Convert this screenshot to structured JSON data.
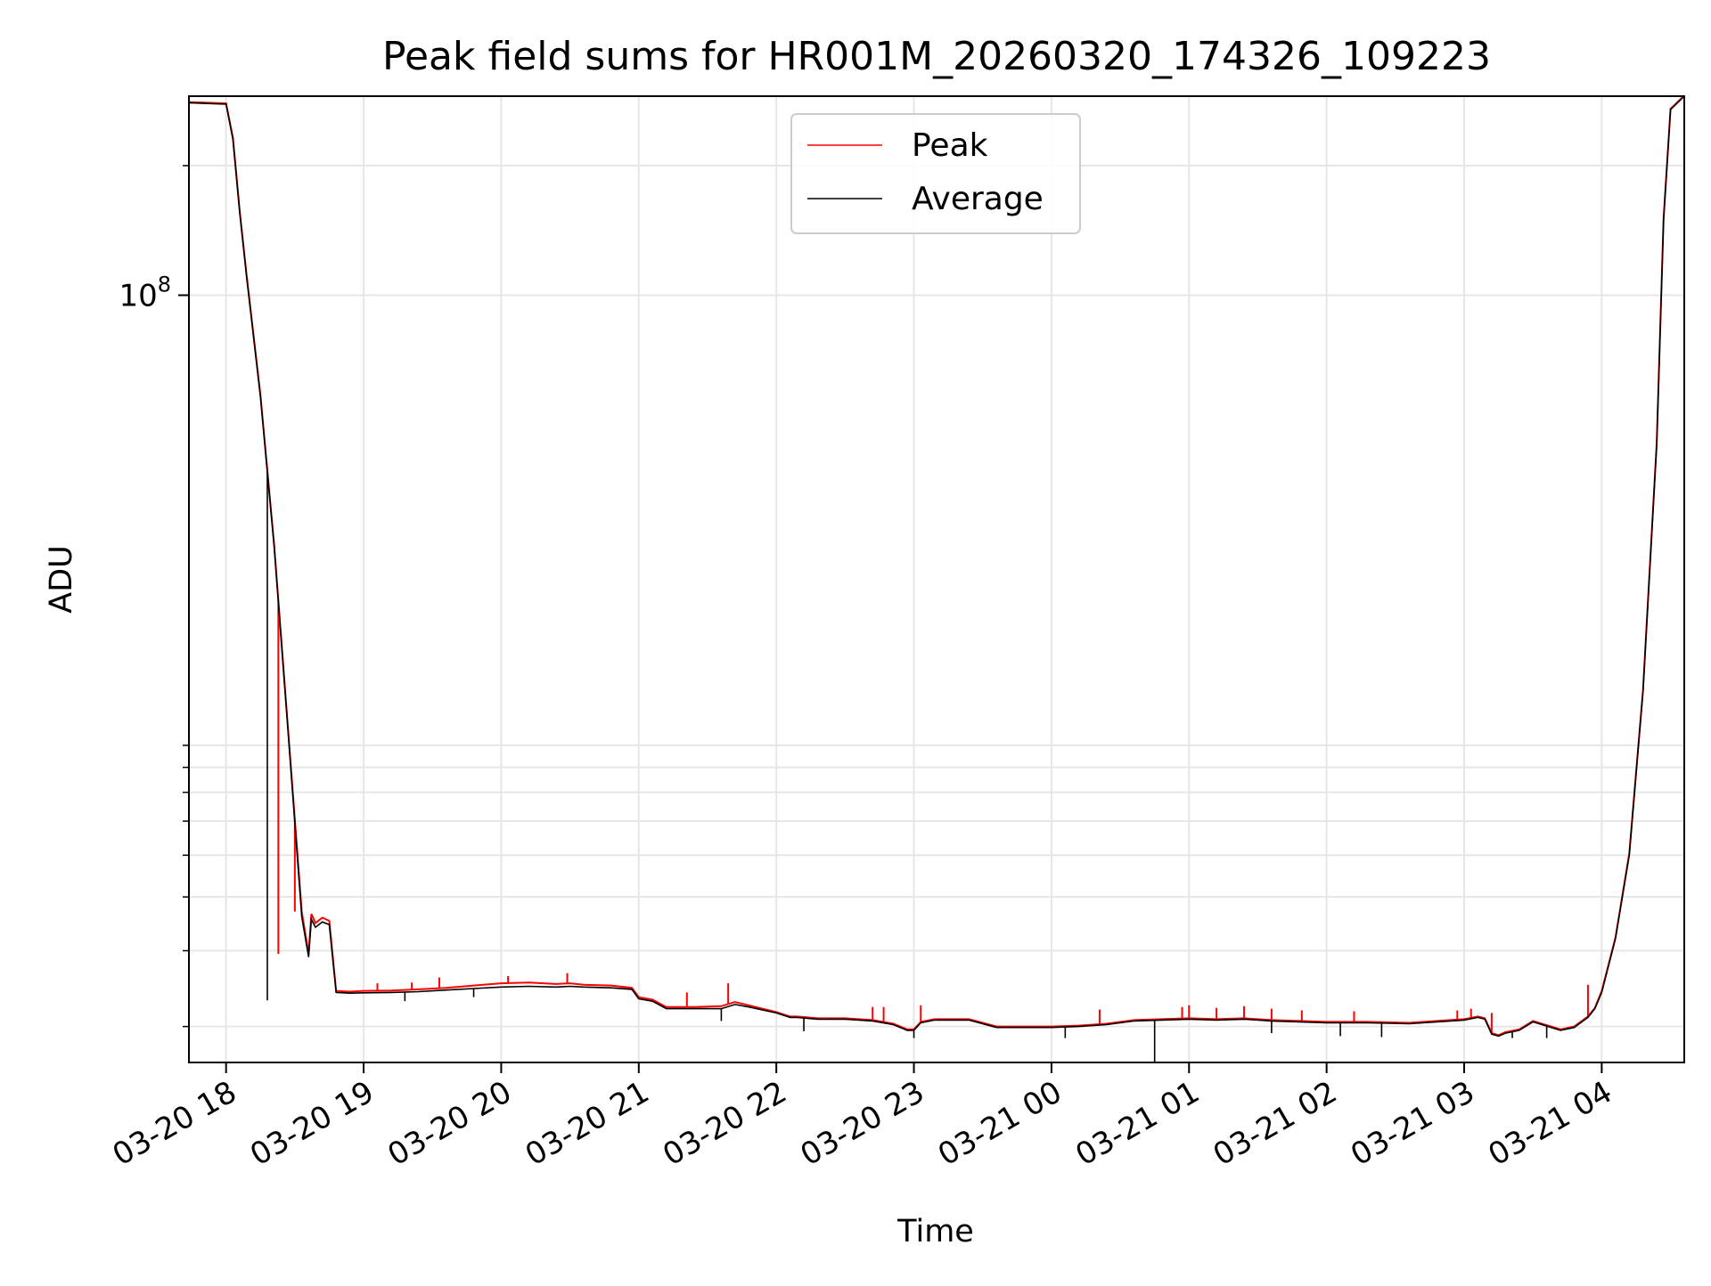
{
  "chart_data": {
    "type": "line",
    "title": "Peak field sums for HR001M_20260320_174326_109223",
    "xlabel": "Time",
    "ylabel": "ADU",
    "yscale": "log",
    "y_major_tick": {
      "value": 100000000,
      "base": "10",
      "exponent": "8"
    },
    "y_minor_ticks": [
      2000000,
      3000000,
      4000000,
      5000000,
      6000000,
      7000000,
      8000000,
      9000000,
      200000000
    ],
    "ylim": [
      1650000,
      290000000
    ],
    "xlim_hours": [
      -0.27,
      10.6
    ],
    "x_tick_labels": [
      "03-20 18",
      "03-20 19",
      "03-20 20",
      "03-20 21",
      "03-20 22",
      "03-20 23",
      "03-21 00",
      "03-21 01",
      "03-21 02",
      "03-21 03",
      "03-21 04"
    ],
    "x_tick_hours": [
      0,
      1,
      2,
      3,
      4,
      5,
      6,
      7,
      8,
      9,
      10
    ],
    "grid": true,
    "legend": {
      "location": "upper center",
      "entries": [
        {
          "name": "Peak",
          "color": "#ff0000"
        },
        {
          "name": "Average",
          "color": "#000000"
        }
      ]
    },
    "series": [
      {
        "name": "Average",
        "color": "#000000",
        "x_hours": [
          -0.27,
          0.0,
          0.05,
          0.1,
          0.15,
          0.25,
          0.35,
          0.45,
          0.55,
          0.6,
          0.62,
          0.65,
          0.7,
          0.75,
          0.8,
          0.9,
          1.0,
          1.2,
          1.4,
          1.6,
          1.8,
          2.0,
          2.2,
          2.4,
          2.5,
          2.6,
          2.8,
          2.95,
          3.0,
          3.1,
          3.2,
          3.4,
          3.6,
          3.7,
          3.8,
          4.0,
          4.1,
          4.15,
          4.3,
          4.5,
          4.7,
          4.85,
          4.95,
          5.0,
          5.05,
          5.15,
          5.4,
          5.6,
          5.8,
          6.0,
          6.2,
          6.4,
          6.6,
          6.8,
          7.0,
          7.2,
          7.4,
          7.6,
          7.8,
          8.0,
          8.3,
          8.6,
          8.8,
          9.0,
          9.1,
          9.15,
          9.2,
          9.25,
          9.3,
          9.4,
          9.5,
          9.7,
          9.8,
          9.9,
          9.95,
          10.0,
          10.1,
          10.2,
          10.3,
          10.4,
          10.45,
          10.5,
          10.6
        ],
        "values": [
          280000000,
          278000000,
          230000000,
          155000000,
          110000000,
          58000000,
          26000000,
          9800000,
          3600000,
          2900000,
          3550000,
          3400000,
          3500000,
          3450000,
          2400000,
          2390000,
          2395000,
          2400000,
          2410000,
          2430000,
          2450000,
          2470000,
          2480000,
          2470000,
          2480000,
          2470000,
          2460000,
          2440000,
          2320000,
          2290000,
          2200000,
          2200000,
          2200000,
          2250000,
          2220000,
          2150000,
          2100000,
          2100000,
          2080000,
          2080000,
          2060000,
          2020000,
          1960000,
          1960000,
          2040000,
          2070000,
          2070000,
          1990000,
          1990000,
          1990000,
          2000000,
          2020000,
          2060000,
          2070000,
          2080000,
          2070000,
          2080000,
          2060000,
          2050000,
          2040000,
          2040000,
          2030000,
          2050000,
          2070000,
          2100000,
          2080000,
          1920000,
          1900000,
          1930000,
          1960000,
          2050000,
          1960000,
          1990000,
          2100000,
          2200000,
          2400000,
          3200000,
          5000000,
          12000000,
          45000000,
          150000000,
          270000000,
          290000000
        ]
      },
      {
        "name": "Peak",
        "color": "#ff0000",
        "x_hours": [
          -0.27,
          0.0,
          0.05,
          0.1,
          0.15,
          0.25,
          0.35,
          0.45,
          0.55,
          0.6,
          0.62,
          0.65,
          0.7,
          0.75,
          0.8,
          0.9,
          1.0,
          1.2,
          1.4,
          1.6,
          1.8,
          2.0,
          2.2,
          2.4,
          2.5,
          2.6,
          2.8,
          2.95,
          3.0,
          3.1,
          3.2,
          3.4,
          3.6,
          3.7,
          3.8,
          4.0,
          4.1,
          4.15,
          4.3,
          4.5,
          4.7,
          4.85,
          4.95,
          5.0,
          5.05,
          5.15,
          5.4,
          5.6,
          5.8,
          6.0,
          6.2,
          6.4,
          6.6,
          6.8,
          7.0,
          7.2,
          7.4,
          7.6,
          7.8,
          8.0,
          8.3,
          8.6,
          8.8,
          9.0,
          9.1,
          9.15,
          9.2,
          9.25,
          9.3,
          9.4,
          9.5,
          9.7,
          9.8,
          9.9,
          9.95,
          10.0,
          10.1,
          10.2,
          10.3,
          10.4,
          10.45,
          10.5,
          10.6
        ],
        "values": [
          281000000,
          279000000,
          232000000,
          156000000,
          111000000,
          58500000,
          26200000,
          9900000,
          3700000,
          2950000,
          3650000,
          3480000,
          3580000,
          3520000,
          2420000,
          2410000,
          2420000,
          2425000,
          2440000,
          2460000,
          2490000,
          2520000,
          2530000,
          2510000,
          2520000,
          2500000,
          2490000,
          2460000,
          2340000,
          2310000,
          2220000,
          2220000,
          2230000,
          2280000,
          2240000,
          2160000,
          2110000,
          2110000,
          2090000,
          2090000,
          2070000,
          2030000,
          1970000,
          1970000,
          2050000,
          2080000,
          2080000,
          2000000,
          2000000,
          2000000,
          2010000,
          2030000,
          2070000,
          2080000,
          2090000,
          2080000,
          2090000,
          2070000,
          2060000,
          2050000,
          2050000,
          2040000,
          2060000,
          2080000,
          2110000,
          2090000,
          1930000,
          1910000,
          1940000,
          1970000,
          2060000,
          1970000,
          2000000,
          2110000,
          2210000,
          2420000,
          3220000,
          5050000,
          12100000,
          45500000,
          151000000,
          271000000,
          291000000
        ]
      }
    ],
    "peak_spikes": [
      {
        "x_hours": 0.38,
        "value": 2950000
      },
      {
        "x_hours": 0.5,
        "value": 3700000
      },
      {
        "x_hours": 1.1,
        "value": 2520000
      },
      {
        "x_hours": 1.35,
        "value": 2530000
      },
      {
        "x_hours": 1.55,
        "value": 2600000
      },
      {
        "x_hours": 2.05,
        "value": 2620000
      },
      {
        "x_hours": 2.48,
        "value": 2660000
      },
      {
        "x_hours": 3.35,
        "value": 2400000
      },
      {
        "x_hours": 3.65,
        "value": 2520000
      },
      {
        "x_hours": 4.7,
        "value": 2220000
      },
      {
        "x_hours": 4.78,
        "value": 2220000
      },
      {
        "x_hours": 5.05,
        "value": 2240000
      },
      {
        "x_hours": 6.35,
        "value": 2190000
      },
      {
        "x_hours": 6.95,
        "value": 2220000
      },
      {
        "x_hours": 7.0,
        "value": 2240000
      },
      {
        "x_hours": 7.2,
        "value": 2210000
      },
      {
        "x_hours": 7.4,
        "value": 2230000
      },
      {
        "x_hours": 7.6,
        "value": 2200000
      },
      {
        "x_hours": 7.82,
        "value": 2180000
      },
      {
        "x_hours": 8.2,
        "value": 2170000
      },
      {
        "x_hours": 8.95,
        "value": 2180000
      },
      {
        "x_hours": 9.05,
        "value": 2200000
      },
      {
        "x_hours": 9.2,
        "value": 2150000
      },
      {
        "x_hours": 9.9,
        "value": 2500000
      }
    ],
    "average_dips": [
      {
        "x_hours": 0.3,
        "value": 2300000
      },
      {
        "x_hours": 1.3,
        "value": 2290000
      },
      {
        "x_hours": 1.8,
        "value": 2340000
      },
      {
        "x_hours": 3.6,
        "value": 2060000
      },
      {
        "x_hours": 4.2,
        "value": 1950000
      },
      {
        "x_hours": 5.0,
        "value": 1880000
      },
      {
        "x_hours": 6.1,
        "value": 1880000
      },
      {
        "x_hours": 6.75,
        "value": 1650000
      },
      {
        "x_hours": 7.6,
        "value": 1930000
      },
      {
        "x_hours": 8.1,
        "value": 1900000
      },
      {
        "x_hours": 8.4,
        "value": 1890000
      },
      {
        "x_hours": 9.35,
        "value": 1880000
      },
      {
        "x_hours": 9.6,
        "value": 1880000
      }
    ]
  }
}
